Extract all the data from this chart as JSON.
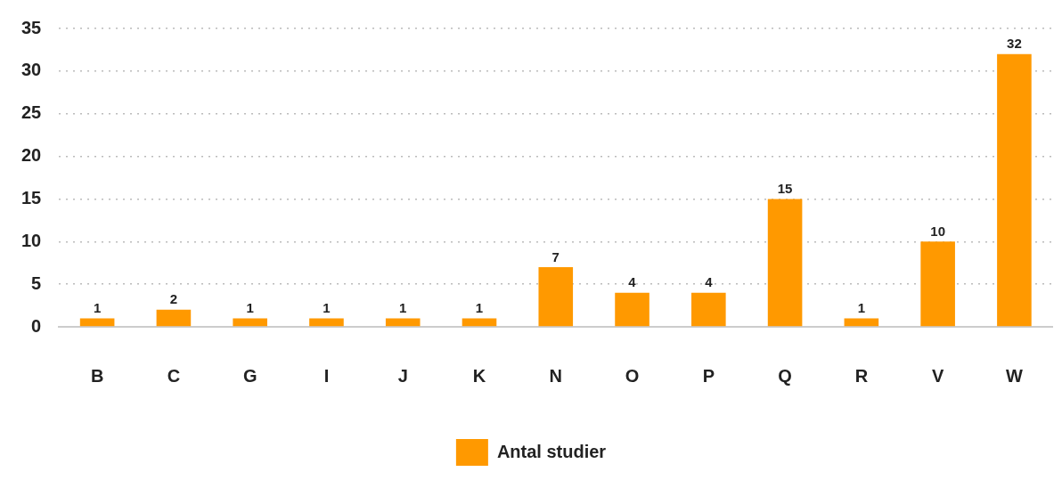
{
  "chart_data": {
    "type": "bar",
    "categories": [
      "B",
      "C",
      "G",
      "I",
      "J",
      "K",
      "N",
      "O",
      "P",
      "Q",
      "R",
      "V",
      "W"
    ],
    "series": [
      {
        "name": "Antal studier",
        "color": "#ff9900",
        "values": [
          1,
          2,
          1,
          1,
          1,
          1,
          7,
          4,
          4,
          15,
          1,
          10,
          32
        ]
      }
    ],
    "ylim": [
      0,
      35
    ],
    "yticks": [
      0,
      5,
      10,
      15,
      20,
      25,
      30,
      35
    ],
    "grid": "y",
    "legend": "bottom",
    "data_labels": true
  }
}
